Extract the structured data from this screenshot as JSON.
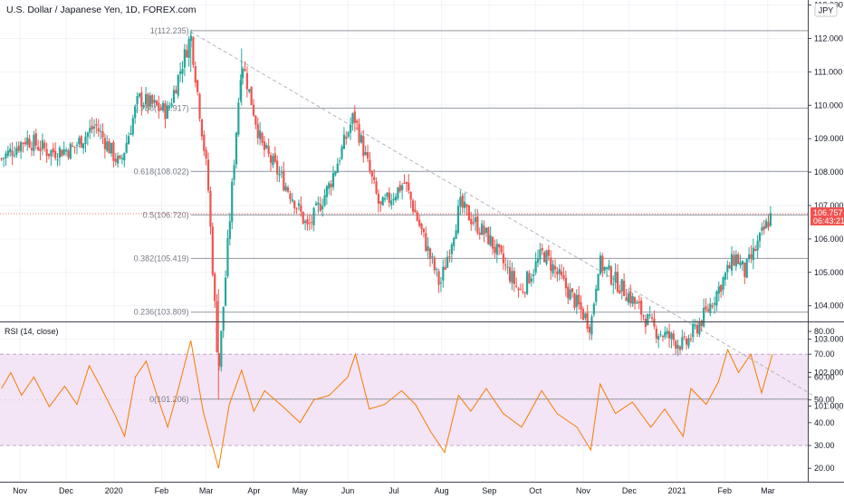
{
  "header": {
    "title": "U.S. Dollar / Japanese Yen, 1D, FOREX.com",
    "currency_badge": "JPY"
  },
  "price_badge": {
    "price": "106.757",
    "countdown": "06:43:21"
  },
  "rsi_panel": {
    "title": "RSI (14, close)"
  },
  "colors": {
    "up": "#26a69a",
    "down": "#ef5350",
    "fib_line": "#9598a1",
    "trendline": "#b2b5be",
    "rsi_line": "#f57c00",
    "rsi_band": "#f3e5f5",
    "rsi_band_border": "#c5a3cf",
    "badge": "#ef5350"
  },
  "chart_data": [
    {
      "type": "candlestick",
      "title": "U.S. Dollar / Japanese Yen, 1D, FOREX.com",
      "x_ticks": [
        "Nov",
        "Dec",
        "2020",
        "Feb",
        "Mar",
        "Apr",
        "May",
        "Jun",
        "Jul",
        "Aug",
        "Sep",
        "Oct",
        "Nov",
        "Dec",
        "2021",
        "Feb",
        "Mar"
      ],
      "y_ticks": [
        "113.000",
        "112.000",
        "111.000",
        "110.000",
        "109.000",
        "108.000",
        "107.000",
        "106.000",
        "105.000",
        "104.000",
        "103.000",
        "102.000",
        "101.000"
      ],
      "ylim": [
        100.7,
        113.5
      ],
      "fib_levels": [
        {
          "label": "1(112.235)",
          "value": 112.235
        },
        {
          "label": "0.786(109.917)",
          "value": 109.917
        },
        {
          "label": "0.618(108.022)",
          "value": 108.022
        },
        {
          "label": "0.5(106.720)",
          "value": 106.72
        },
        {
          "label": "0.382(105.419)",
          "value": 105.419
        },
        {
          "label": "0.236(103.809)",
          "value": 103.809
        },
        {
          "label": "0(101.206)",
          "value": 101.206
        }
      ],
      "trendline": {
        "from": {
          "x": "2020-02-20",
          "y": 112.2
        },
        "to": {
          "x": "2021-03-20",
          "y": 101.6
        }
      },
      "last_price": 106.757,
      "price_path": [
        [
          "2019-10-20",
          108.4
        ],
        [
          "2019-11-05",
          109.0
        ],
        [
          "2019-11-20",
          108.6
        ],
        [
          "2019-12-05",
          108.7
        ],
        [
          "2019-12-20",
          109.4
        ],
        [
          "2020-01-05",
          108.2
        ],
        [
          "2020-01-17",
          110.2
        ],
        [
          "2020-02-05",
          109.8
        ],
        [
          "2020-02-20",
          112.1
        ],
        [
          "2020-03-02",
          107.8
        ],
        [
          "2020-03-09",
          102.0
        ],
        [
          "2020-03-24",
          111.4
        ],
        [
          "2020-04-06",
          108.8
        ],
        [
          "2020-04-27",
          107.2
        ],
        [
          "2020-05-06",
          106.3
        ],
        [
          "2020-05-20",
          107.6
        ],
        [
          "2020-06-05",
          109.7
        ],
        [
          "2020-06-22",
          106.9
        ],
        [
          "2020-07-08",
          107.7
        ],
        [
          "2020-07-31",
          104.6
        ],
        [
          "2020-08-13",
          107.0
        ],
        [
          "2020-09-01",
          106.0
        ],
        [
          "2020-09-21",
          104.4
        ],
        [
          "2020-10-06",
          105.6
        ],
        [
          "2020-11-06",
          103.4
        ],
        [
          "2020-11-11",
          105.3
        ],
        [
          "2020-12-01",
          104.3
        ],
        [
          "2020-12-17",
          103.3
        ],
        [
          "2021-01-06",
          102.8
        ],
        [
          "2021-01-20",
          103.8
        ],
        [
          "2021-02-08",
          105.5
        ],
        [
          "2021-02-14",
          105.0
        ],
        [
          "2021-03-04",
          106.8
        ]
      ]
    },
    {
      "type": "line",
      "title": "RSI (14, close)",
      "x_ticks": [
        "Nov",
        "Dec",
        "2020",
        "Feb",
        "Mar",
        "Apr",
        "May",
        "Jun",
        "Jul",
        "Aug",
        "Sep",
        "Oct",
        "Nov",
        "Dec",
        "2021",
        "Feb",
        "Mar"
      ],
      "y_ticks": [
        "80.00",
        "70.00",
        "60.00",
        "50.00",
        "40.00",
        "30.00",
        "20.00"
      ],
      "ylim": [
        15,
        84
      ],
      "bands": {
        "upper": 70,
        "lower": 30
      },
      "series": [
        {
          "points": [
            [
              "2019-10-20",
              55
            ],
            [
              "2019-10-26",
              62
            ],
            [
              "2019-11-02",
              52
            ],
            [
              "2019-11-10",
              60
            ],
            [
              "2019-11-20",
              47
            ],
            [
              "2019-11-30",
              56
            ],
            [
              "2019-12-08",
              48
            ],
            [
              "2019-12-16",
              65
            ],
            [
              "2019-12-24",
              55
            ],
            [
              "2020-01-02",
              43
            ],
            [
              "2020-01-08",
              34
            ],
            [
              "2020-01-15",
              60
            ],
            [
              "2020-01-22",
              67
            ],
            [
              "2020-01-29",
              52
            ],
            [
              "2020-02-05",
              38
            ],
            [
              "2020-02-12",
              55
            ],
            [
              "2020-02-20",
              76
            ],
            [
              "2020-02-28",
              45
            ],
            [
              "2020-03-05",
              30
            ],
            [
              "2020-03-09",
              20
            ],
            [
              "2020-03-16",
              48
            ],
            [
              "2020-03-24",
              63
            ],
            [
              "2020-04-01",
              45
            ],
            [
              "2020-04-08",
              54
            ],
            [
              "2020-04-20",
              47
            ],
            [
              "2020-05-01",
              40
            ],
            [
              "2020-05-10",
              50
            ],
            [
              "2020-05-20",
              52
            ],
            [
              "2020-06-01",
              60
            ],
            [
              "2020-06-06",
              70
            ],
            [
              "2020-06-15",
              46
            ],
            [
              "2020-06-25",
              48
            ],
            [
              "2020-07-06",
              54
            ],
            [
              "2020-07-15",
              48
            ],
            [
              "2020-07-25",
              36
            ],
            [
              "2020-08-03",
              27
            ],
            [
              "2020-08-12",
              52
            ],
            [
              "2020-08-20",
              45
            ],
            [
              "2020-08-30",
              55
            ],
            [
              "2020-09-10",
              44
            ],
            [
              "2020-09-22",
              38
            ],
            [
              "2020-10-05",
              54
            ],
            [
              "2020-10-15",
              44
            ],
            [
              "2020-10-28",
              38
            ],
            [
              "2020-11-06",
              28
            ],
            [
              "2020-11-12",
              57
            ],
            [
              "2020-11-22",
              44
            ],
            [
              "2020-12-03",
              49
            ],
            [
              "2020-12-15",
              38
            ],
            [
              "2020-12-24",
              46
            ],
            [
              "2021-01-05",
              34
            ],
            [
              "2021-01-10",
              55
            ],
            [
              "2021-01-20",
              48
            ],
            [
              "2021-01-28",
              58
            ],
            [
              "2021-02-03",
              72
            ],
            [
              "2021-02-10",
              62
            ],
            [
              "2021-02-18",
              70
            ],
            [
              "2021-02-25",
              53
            ],
            [
              "2021-03-04",
              70
            ]
          ]
        }
      ]
    }
  ]
}
